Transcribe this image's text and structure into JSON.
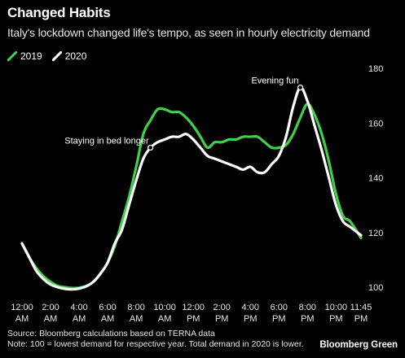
{
  "title": "Changed Habits",
  "subtitle": "Italy's lockdown changed life's tempo, as seen in hourly electricity demand",
  "footer": {
    "source": "Source: Bloomberg calculations based on TERNA data",
    "note": "Note: 100 = lowest demand for respective year. Total demand in 2020 is lower.",
    "brand": "Bloomberg Green"
  },
  "colors": {
    "series_2019": "#3fd14a",
    "series_2020": "#ffffff",
    "background": "#000000"
  },
  "chart_data": {
    "type": "line",
    "title": "Changed Habits",
    "subtitle": "Italy's lockdown changed life's tempo, as seen in hourly electricity demand",
    "xlabel": "",
    "ylabel": "",
    "ylim": [
      100,
      180
    ],
    "yticks": [
      100,
      120,
      140,
      160,
      180
    ],
    "xlim": [
      0,
      23.75
    ],
    "xticks": [
      {
        "value": 0,
        "label": [
          "12:00",
          "AM"
        ]
      },
      {
        "value": 2,
        "label": [
          "2:00",
          "AM"
        ]
      },
      {
        "value": 4,
        "label": [
          "4:00",
          "AM"
        ]
      },
      {
        "value": 6,
        "label": [
          "6:00",
          "AM"
        ]
      },
      {
        "value": 8,
        "label": [
          "8:00",
          "AM"
        ]
      },
      {
        "value": 10,
        "label": [
          "10:00",
          "AM"
        ]
      },
      {
        "value": 12,
        "label": [
          "12:00",
          "PM"
        ]
      },
      {
        "value": 14,
        "label": [
          "2:00",
          "PM"
        ]
      },
      {
        "value": 16,
        "label": [
          "4:00",
          "PM"
        ]
      },
      {
        "value": 18,
        "label": [
          "6:00",
          "PM"
        ]
      },
      {
        "value": 20,
        "label": [
          "8:00",
          "PM"
        ]
      },
      {
        "value": 22,
        "label": [
          "10:00",
          "PM"
        ]
      },
      {
        "value": 23.75,
        "label": [
          "11:45",
          "PM"
        ]
      }
    ],
    "grid": false,
    "legend": "top-left",
    "series": [
      {
        "name": "2019",
        "color": "#3fd14a",
        "x": [
          0,
          0.5,
          1,
          1.5,
          2,
          2.5,
          3,
          3.5,
          4,
          4.5,
          5,
          5.5,
          6,
          6.5,
          7,
          7.5,
          8,
          8.5,
          9,
          9.5,
          10,
          10.5,
          11,
          11.5,
          12,
          12.5,
          13,
          13.5,
          14,
          14.5,
          15,
          15.5,
          16,
          16.5,
          17,
          17.5,
          18,
          18.5,
          19,
          19.5,
          20,
          20.5,
          21,
          21.5,
          22,
          22.5,
          23,
          23.75
        ],
        "values": [
          116,
          111,
          107,
          104,
          102,
          100.5,
          100,
          99.7,
          99.8,
          100.5,
          102,
          105,
          109,
          115,
          124,
          133,
          144,
          156,
          161,
          165,
          165,
          164,
          164,
          162,
          159,
          155,
          151,
          153,
          153,
          154,
          154,
          155,
          155,
          155,
          153,
          151,
          151,
          152,
          156,
          162,
          167,
          163,
          156,
          146,
          134,
          126,
          124,
          118
        ]
      },
      {
        "name": "2020",
        "color": "#ffffff",
        "x": [
          0,
          0.5,
          1,
          1.5,
          2,
          2.5,
          3,
          3.5,
          4,
          4.5,
          5,
          5.5,
          6,
          6.5,
          7,
          7.5,
          8,
          8.5,
          9,
          9.5,
          10,
          10.5,
          11,
          11.5,
          12,
          12.5,
          13,
          13.5,
          14,
          14.5,
          15,
          15.5,
          16,
          16.5,
          17,
          17.5,
          18,
          18.5,
          19,
          19.5,
          20,
          20.5,
          21,
          21.5,
          22,
          22.5,
          23,
          23.75
        ],
        "values": [
          116,
          111,
          106,
          103,
          101,
          100,
          99.4,
          99.2,
          99.5,
          100.3,
          102,
          105,
          109,
          116,
          121,
          130,
          139,
          147,
          151,
          153,
          154,
          155,
          155,
          156,
          154,
          151,
          148,
          147,
          146,
          145,
          144,
          143,
          144,
          142,
          142,
          145,
          148,
          155,
          166,
          173,
          168,
          159,
          150,
          140,
          130,
          124,
          122,
          119
        ]
      }
    ],
    "annotations": [
      {
        "text": "Staying in bed longer",
        "series": "2020",
        "x": 9,
        "y": 151,
        "anchor": "end"
      },
      {
        "text": "Evening fun",
        "series": "2020",
        "x": 19.5,
        "y": 173,
        "anchor": "end"
      }
    ]
  }
}
